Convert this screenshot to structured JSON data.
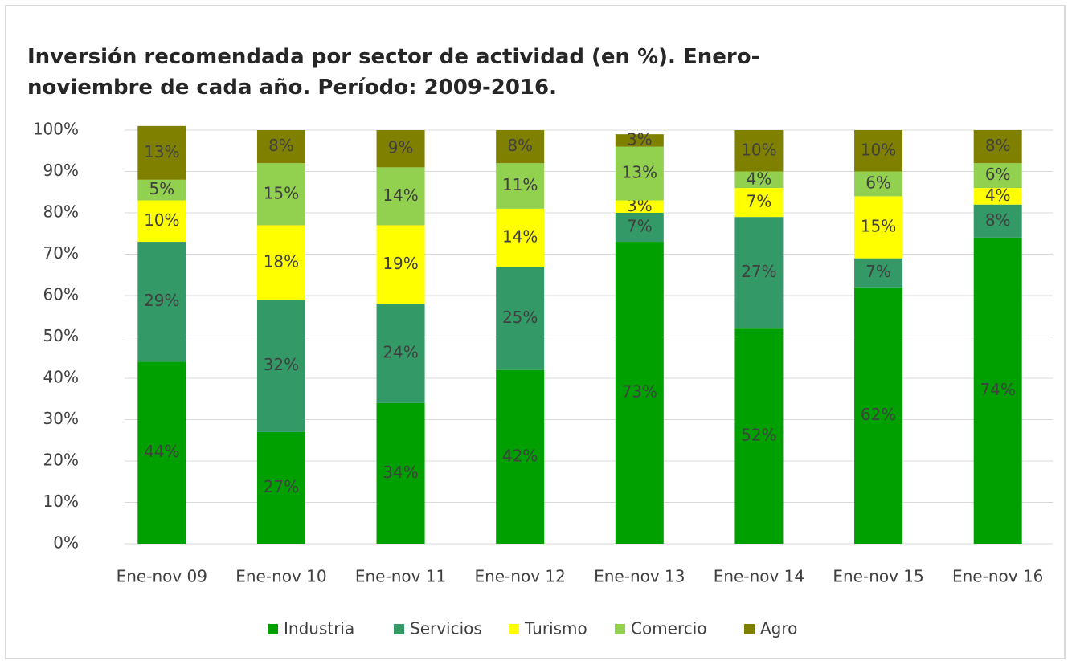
{
  "chart_data": {
    "type": "stacked_bar",
    "title": "Inversión recomendada por sector de actividad (en %). Enero-noviembre de cada año. Período: 2009-2016.",
    "categories": [
      "Ene-nov 09",
      "Ene-nov 10",
      "Ene-nov 11",
      "Ene-nov 12",
      "Ene-nov 13",
      "Ene-nov 14",
      "Ene-nov 15",
      "Ene-nov 16"
    ],
    "series": [
      {
        "name": "Industria",
        "color": "#00a000",
        "values": [
          44,
          27,
          34,
          42,
          73,
          52,
          62,
          74
        ],
        "value_labels": [
          "44%",
          "27%",
          "34%",
          "42%",
          "73%",
          "52%",
          "62%",
          "74%"
        ]
      },
      {
        "name": "Servicios",
        "color": "#339966",
        "values": [
          29,
          32,
          24,
          25,
          7,
          27,
          7,
          8
        ],
        "value_labels": [
          "29%",
          "32%",
          "24%",
          "25%",
          "7%",
          "27%",
          "7%",
          "8%"
        ]
      },
      {
        "name": "Turismo",
        "color": "#ffff00",
        "values": [
          10,
          18,
          19,
          14,
          3,
          7,
          15,
          4
        ],
        "value_labels": [
          "10%",
          "18%",
          "19%",
          "14%",
          "3%",
          "7%",
          "15%",
          "4%"
        ]
      },
      {
        "name": "Comercio",
        "color": "#92d050",
        "values": [
          5,
          15,
          14,
          11,
          13,
          4,
          6,
          6
        ],
        "value_labels": [
          "5%",
          "15%",
          "14%",
          "11%",
          "13%",
          "4%",
          "6%",
          "6%"
        ]
      },
      {
        "name": "Agro",
        "color": "#808000",
        "values": [
          13,
          8,
          9,
          8,
          3,
          10,
          10,
          8
        ],
        "value_labels": [
          "13%",
          "8%",
          "9%",
          "8%",
          "3%",
          "10%",
          "10%",
          "8%"
        ]
      }
    ],
    "ylim": [
      0,
      100
    ],
    "yticks": [
      {
        "value": 0,
        "label": "0%"
      },
      {
        "value": 10,
        "label": "10%"
      },
      {
        "value": 20,
        "label": "20%"
      },
      {
        "value": 30,
        "label": "30%"
      },
      {
        "value": 40,
        "label": "40%"
      },
      {
        "value": 50,
        "label": "50%"
      },
      {
        "value": 60,
        "label": "60%"
      },
      {
        "value": 70,
        "label": "70%"
      },
      {
        "value": 80,
        "label": "80%"
      },
      {
        "value": 90,
        "label": "90%"
      },
      {
        "value": 100,
        "label": "100%"
      }
    ],
    "grid": true,
    "legend": "bottom"
  }
}
